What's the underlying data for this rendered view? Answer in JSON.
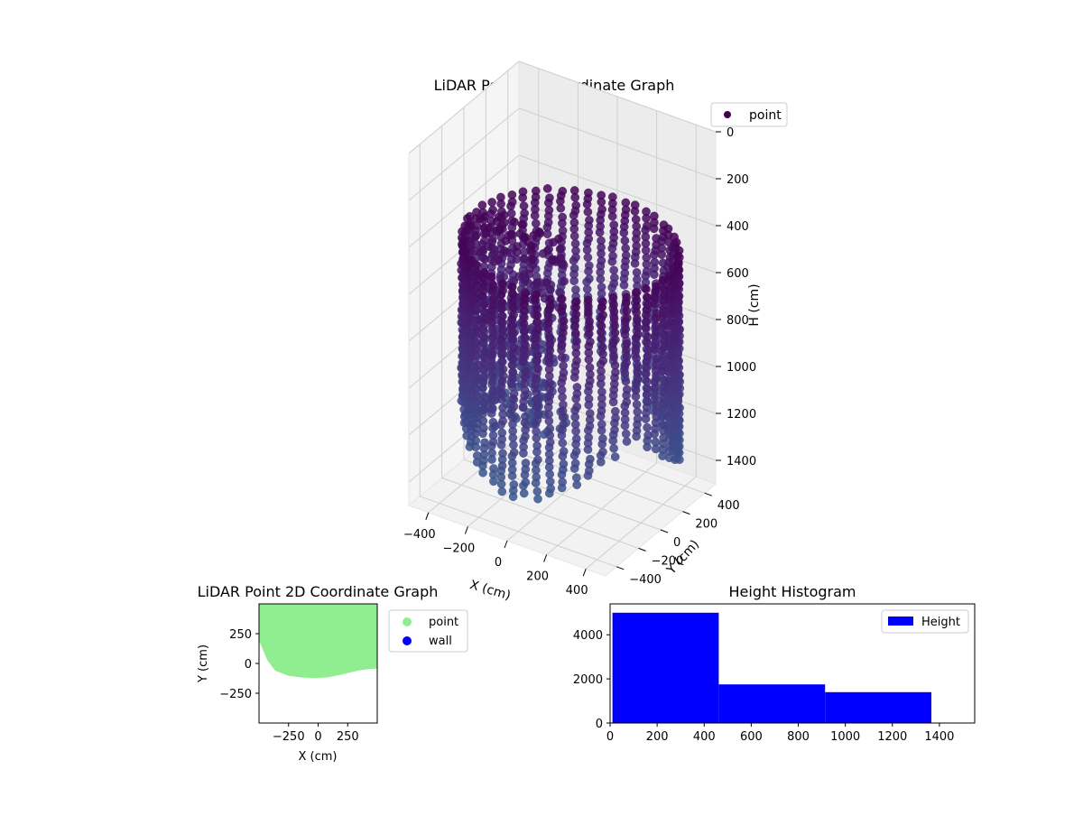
{
  "chart_data": [
    {
      "type": "scatter3d",
      "title": "LiDAR Point 3D Coordinate Graph",
      "xlabel": "X (cm)",
      "ylabel": "Y (cm)",
      "zlabel": "H (cm)",
      "xticks": [
        -400,
        -200,
        0,
        200,
        400
      ],
      "yticks": [
        -400,
        -200,
        0,
        200,
        400
      ],
      "zticks": [
        0,
        200,
        400,
        600,
        800,
        1000,
        1200,
        1400
      ],
      "xlim": [
        -500,
        500
      ],
      "ylim": [
        -500,
        500
      ],
      "zlim": [
        0,
        1500
      ],
      "z_inverted": true,
      "grid": true,
      "legend": {
        "position": "top-right",
        "entries": [
          {
            "name": "point",
            "color": "#440154"
          }
        ]
      },
      "series": [
        {
          "name": "point",
          "colormap": "viridis",
          "shape": "open-bottom cylindrical shell of points, radius ~480 cm, spanning height 0–1300 cm, x ≥ about -460 cm"
        }
      ]
    },
    {
      "type": "scatter",
      "title": "LiDAR Point 2D Coordinate Graph",
      "xlabel": "X (cm)",
      "ylabel": "Y (cm)",
      "xticks": [
        -250,
        0,
        250
      ],
      "yticks": [
        -250,
        0,
        250
      ],
      "xlim": [
        -500,
        500
      ],
      "ylim": [
        -500,
        500
      ],
      "legend": {
        "position": "outside-right",
        "entries": [
          {
            "name": "point",
            "color": "#90ee90"
          },
          {
            "name": "wall",
            "color": "#0000ff"
          }
        ]
      },
      "series": [
        {
          "name": "point",
          "color": "#90ee90",
          "boundary": [
            [
              -500,
              500
            ],
            [
              500,
              500
            ],
            [
              500,
              -20
            ],
            [
              420,
              -25
            ],
            [
              320,
              -40
            ],
            [
              200,
              -70
            ],
            [
              80,
              -95
            ],
            [
              -40,
              -100
            ],
            [
              -140,
              -95
            ],
            [
              -250,
              -80
            ],
            [
              -350,
              -40
            ],
            [
              -410,
              40
            ],
            [
              -470,
              180
            ],
            [
              -500,
              250
            ]
          ]
        },
        {
          "name": "wall",
          "color": "#0000ff",
          "points": []
        }
      ]
    },
    {
      "type": "histogram",
      "title": "Height Histogram",
      "legend": {
        "position": "top-right",
        "entries": [
          {
            "name": "Height",
            "color": "#0000ff"
          }
        ]
      },
      "xticks": [
        0,
        200,
        400,
        600,
        800,
        1000,
        1200,
        1400
      ],
      "yticks": [
        0,
        2000,
        4000
      ],
      "xlim": [
        0,
        1550
      ],
      "ylim": [
        0,
        5400
      ],
      "bins": [
        {
          "start": 10,
          "end": 462,
          "count": 5000
        },
        {
          "start": 462,
          "end": 914,
          "count": 1750
        },
        {
          "start": 914,
          "end": 1366,
          "count": 1400
        }
      ],
      "color": "#0000ff"
    }
  ]
}
